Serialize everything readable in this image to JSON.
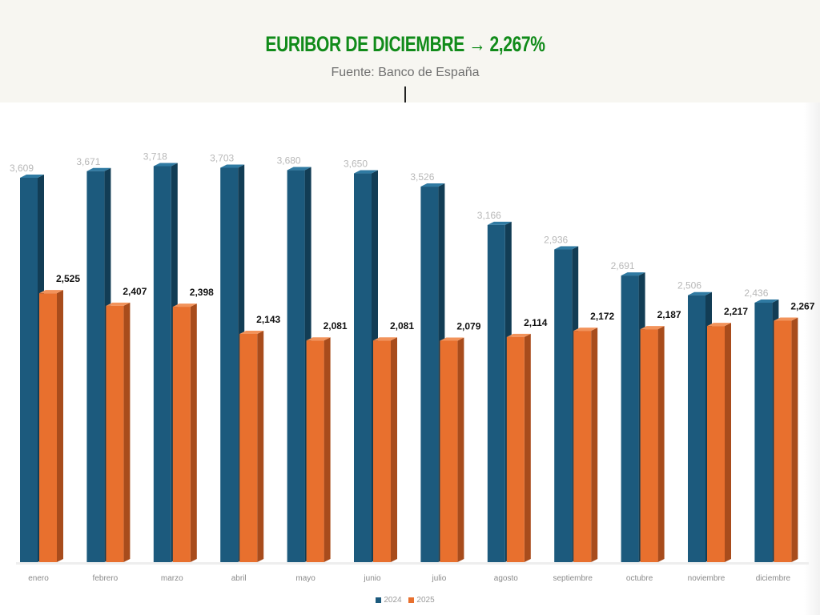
{
  "header": {
    "title": "EURIBOR DE DICIEMBRE → 2,267%",
    "subtitle": "Fuente: Banco de España"
  },
  "colors": {
    "series_2024": "#1c5a7d",
    "series_2025": "#e8702e",
    "title": "#118b1a"
  },
  "chart_data": {
    "type": "bar",
    "categories": [
      "enero",
      "febrero",
      "marzo",
      "abril",
      "mayo",
      "junio",
      "julio",
      "agosto",
      "septiembre",
      "octubre",
      "noviembre",
      "diciembre"
    ],
    "series": [
      {
        "name": "2024",
        "values": [
          3.609,
          3.671,
          3.718,
          3.703,
          3.68,
          3.65,
          3.526,
          3.166,
          2.936,
          2.691,
          2.506,
          2.436
        ],
        "labels": [
          "3,609",
          "3,671",
          "3,718",
          "3,703",
          "3,680",
          "3,650",
          "3,526",
          "3,166",
          "2,936",
          "2,691",
          "2,506",
          "2,436"
        ]
      },
      {
        "name": "2025",
        "values": [
          2.525,
          2.407,
          2.398,
          2.143,
          2.081,
          2.081,
          2.079,
          2.114,
          2.172,
          2.187,
          2.217,
          2.267
        ],
        "labels": [
          "2,525",
          "2,407",
          "2,398",
          "2,143",
          "2,081",
          "2,081",
          "2,079",
          "2,114",
          "2,172",
          "2,187",
          "2,217",
          "2,267"
        ]
      }
    ],
    "ylim": [
      0,
      4
    ],
    "grid": false,
    "legend": "bottom-center",
    "style": "3d-column"
  }
}
